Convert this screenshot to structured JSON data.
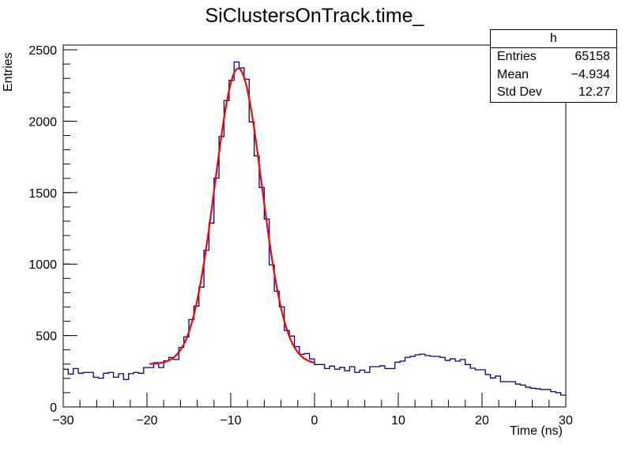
{
  "chart_data": {
    "type": "histogram",
    "title": "SiClustersOnTrack.time_",
    "xlabel": "Time (ns)",
    "ylabel": "Entries",
    "xlim": [
      -30,
      30
    ],
    "ylim": [
      0,
      2500
    ],
    "x_ticks": [
      "−30",
      "−20",
      "−10",
      "0",
      "10",
      "20",
      "30"
    ],
    "y_ticks": [
      "0",
      "500",
      "1000",
      "1500",
      "2000",
      "2500"
    ],
    "bin_width": 0.6,
    "line_color": "#000099",
    "bin_values": [
      264,
      230,
      269,
      236,
      242,
      242,
      208,
      201,
      236,
      242,
      208,
      233,
      192,
      233,
      242,
      236,
      276,
      276,
      310,
      276,
      323,
      347,
      332,
      417,
      490,
      612,
      706,
      839,
      1097,
      1287,
      1602,
      1893,
      2144,
      2286,
      2415,
      2373,
      2294,
      1995,
      1757,
      1536,
      1315,
      994,
      811,
      701,
      535,
      496,
      422,
      369,
      374,
      336,
      297,
      297,
      269,
      286,
      264,
      277,
      253,
      282,
      242,
      258,
      242,
      282,
      282,
      288,
      269,
      269,
      313,
      321,
      347,
      354,
      365,
      370,
      360,
      354,
      354,
      347,
      326,
      337,
      321,
      332,
      297,
      271,
      260,
      260,
      227,
      203,
      216,
      177,
      177,
      177,
      160,
      153,
      138,
      131,
      127,
      122,
      122,
      107,
      100,
      83
    ],
    "fit": {
      "function": "gaussian + constant",
      "color": "#ff0000",
      "range": [
        -19.7,
        0
      ],
      "amplitude": 2070,
      "mean": -9.1,
      "sigma": 2.8,
      "constant": 300
    },
    "stats": {
      "name": "h",
      "entries_label": "Entries",
      "entries": "65158",
      "mean_label": "Mean",
      "mean": "−4.934",
      "stddev_label": "Std Dev",
      "stddev": "12.27"
    }
  }
}
